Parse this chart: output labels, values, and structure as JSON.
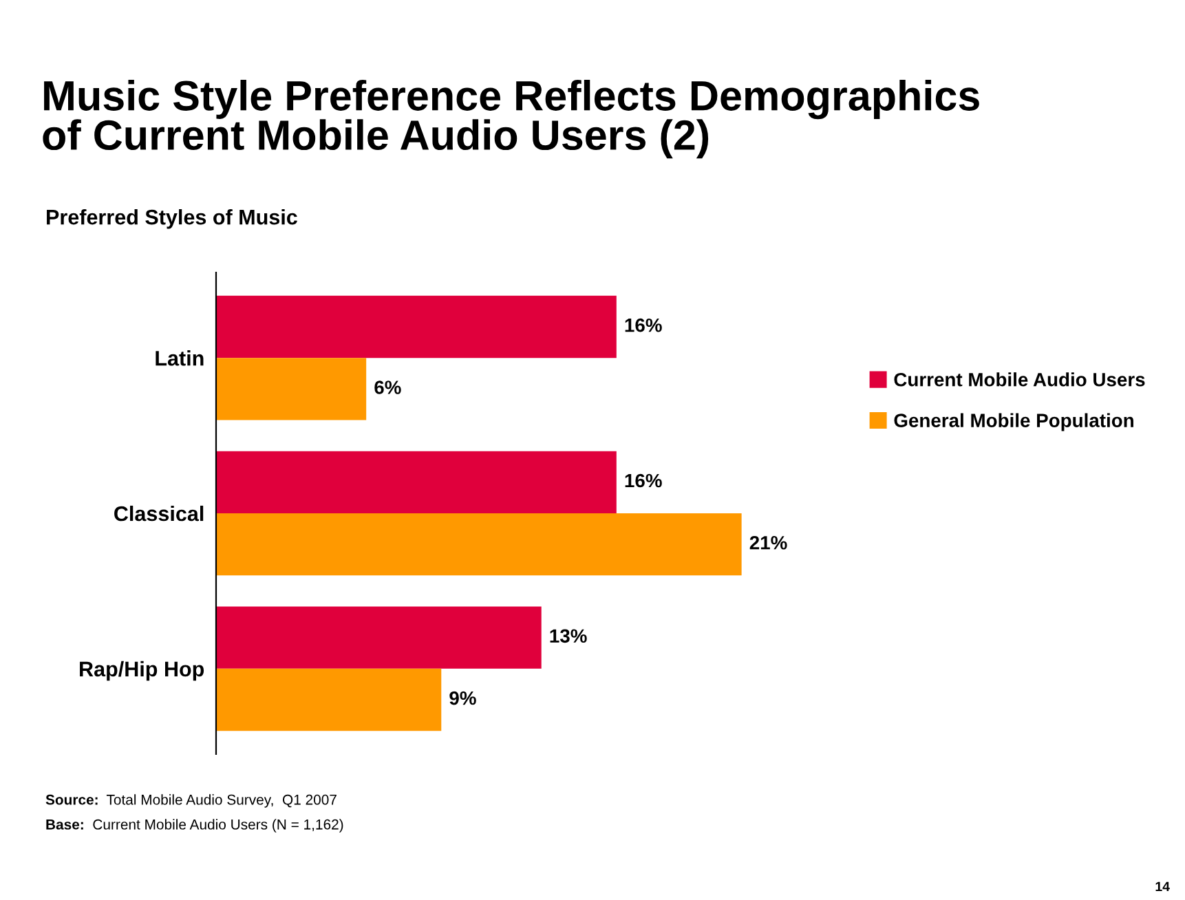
{
  "chart_data": {
    "type": "bar",
    "orientation": "horizontal",
    "title": "Music Style Preference Reflects Demographics\nof Current Mobile Audio Users (2)",
    "subtitle": "Preferred Styles of Music",
    "categories": [
      "Latin",
      "Classical",
      "Rap/Hip Hop"
    ],
    "series": [
      {
        "name": "Current Mobile Audio Users",
        "color": "#e0003c",
        "values": [
          16,
          16,
          13
        ],
        "value_labels": [
          "16%",
          "16%",
          "13%"
        ]
      },
      {
        "name": "General Mobile Population",
        "color": "#ff9900",
        "values": [
          6,
          21,
          9
        ],
        "value_labels": [
          "6%",
          "21%",
          "9%"
        ]
      }
    ],
    "legend": "right",
    "grid": false,
    "annotations": [
      "Source:  Total Mobile Audio Survey,  Q1 2007",
      "Base:  Current Mobile Audio Users (N = 1,162)",
      "14"
    ]
  }
}
